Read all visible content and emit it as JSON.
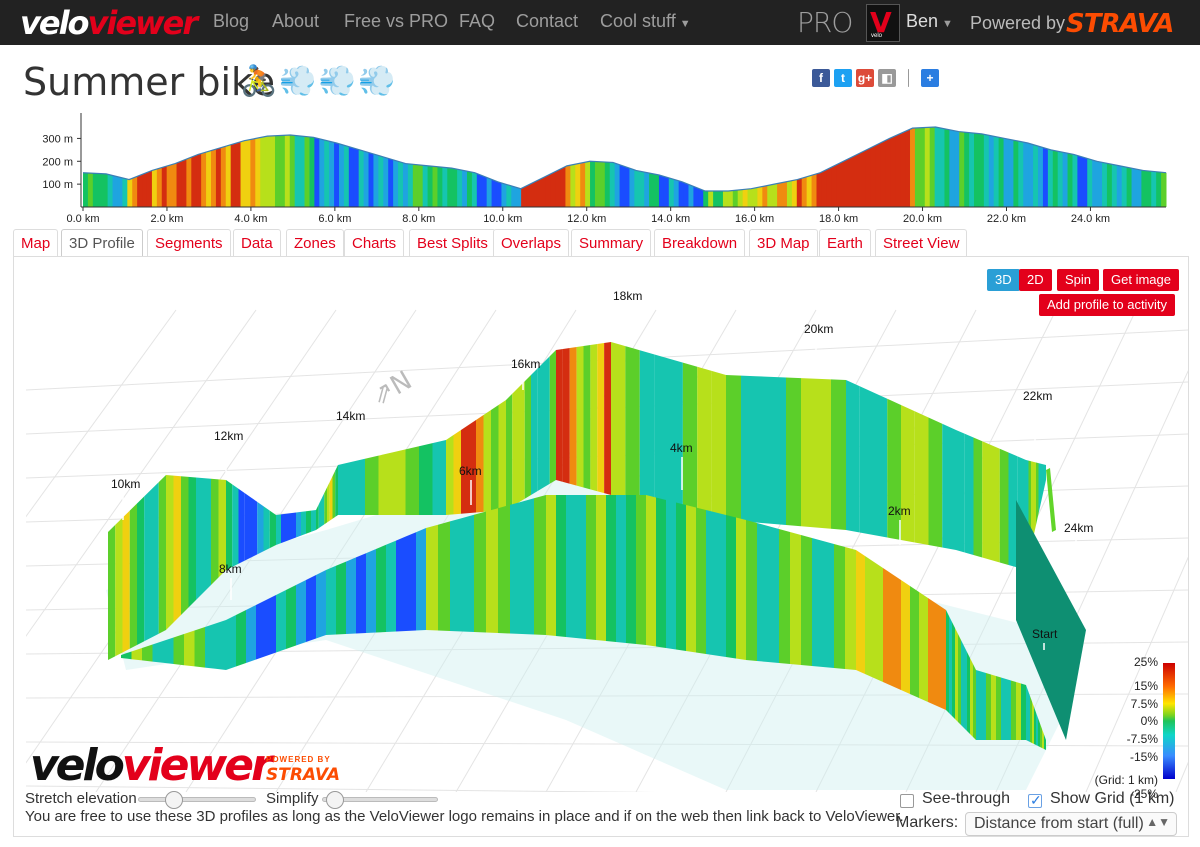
{
  "nav": {
    "brand_white": "velo",
    "brand_red": "viewer",
    "items": [
      "Blog",
      "About",
      "Free vs PRO",
      "FAQ",
      "Contact",
      "Cool stuff"
    ],
    "pro_label": "PRO",
    "user": "Ben",
    "powered_by": "Powered by",
    "strava": "STRAVA"
  },
  "page": {
    "title": "Summer bike",
    "emojis": [
      "🚴",
      "💨",
      "💨",
      "💨"
    ]
  },
  "social": [
    {
      "icon": "facebook-icon",
      "glyph": "f",
      "color": "#3b5998"
    },
    {
      "icon": "twitter-icon",
      "glyph": "t",
      "color": "#1da1f2"
    },
    {
      "icon": "google-plus-icon",
      "glyph": "g+",
      "color": "#dd4b39"
    },
    {
      "icon": "delicious-icon",
      "glyph": "◧",
      "color": "#999999"
    },
    {
      "icon": "share-plus-icon",
      "glyph": "+",
      "color": "#2a7de1"
    }
  ],
  "elevation": {
    "y_ticks": [
      "300 m",
      "200 m",
      "100 m"
    ],
    "x_ticks": [
      "0.0 km",
      "2.0 km",
      "4.0 km",
      "6.0 km",
      "8.0 km",
      "10.0 km",
      "12.0 km",
      "14.0 km",
      "16.0 km",
      "18.0 km",
      "20.0 km",
      "22.0 km",
      "24.0 km"
    ],
    "profile_m": [
      150,
      145,
      120,
      160,
      190,
      230,
      260,
      290,
      310,
      315,
      305,
      280,
      250,
      220,
      190,
      180,
      170,
      150,
      110,
      80,
      130,
      180,
      200,
      195,
      160,
      140,
      110,
      70,
      70,
      80,
      100,
      120,
      150,
      200,
      250,
      300,
      345,
      350,
      330,
      320,
      300,
      280,
      250,
      230,
      200,
      180,
      160,
      150
    ]
  },
  "tabs": [
    "Map",
    "3D Profile",
    "Segments",
    "Data",
    "Zones",
    "Charts",
    "Best Splits",
    "Overlaps",
    "Summary",
    "Breakdown",
    "3D Map",
    "Earth",
    "Street View"
  ],
  "active_tab": "3D Profile",
  "view_buttons": {
    "b3d": "3D",
    "b2d": "2D",
    "spin": "Spin",
    "get_image": "Get image",
    "add_profile": "Add profile to activity"
  },
  "scene_labels": [
    "18km",
    "20km",
    "16km",
    "22km",
    "14km",
    "12km",
    "6km",
    "4km",
    "10km",
    "2km",
    "24km",
    "8km",
    "Start"
  ],
  "color_scale": {
    "labels": [
      "25%",
      "15%",
      "7.5%",
      "0%",
      "-7.5%",
      "-15%",
      "-25%"
    ],
    "grid_note": "(Grid: 1 km)"
  },
  "logo": {
    "white": "velo",
    "red": "viewer",
    "powered_by": "POWERED BY",
    "strava": "STRAVA"
  },
  "controls": {
    "stretch_label": "Stretch elevation",
    "simplify_label": "Simplify",
    "stretch_value": 0.3,
    "simplify_value": 0.1,
    "note": "You are free to use these 3D profiles as long as the VeloViewer logo remains in place and if on the web then link back to VeloViewer.",
    "see_through_label": "See-through",
    "see_through_checked": false,
    "show_grid_label": "Show Grid (1 km)",
    "show_grid_checked": true,
    "markers_label": "Markers:",
    "markers_value": "Distance from start (full)"
  }
}
